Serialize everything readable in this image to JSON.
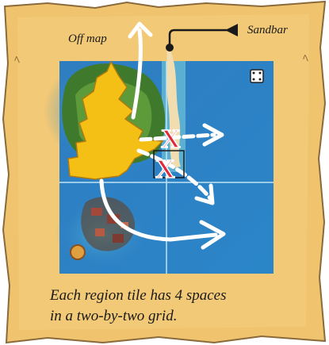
{
  "labels": {
    "off_map": "Off map",
    "sandbar": "Sandbar"
  },
  "caption": {
    "lines": [
      "Each region tile has 4 spaces",
      "in a two-by-two grid."
    ]
  }
}
